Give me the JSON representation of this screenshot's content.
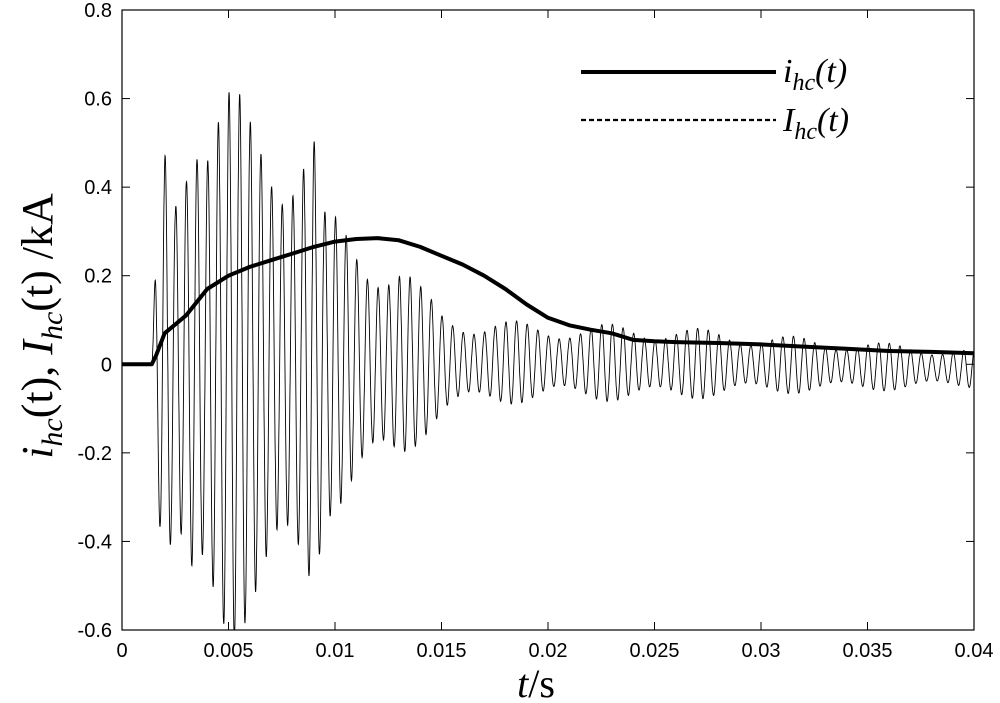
{
  "chart_data": {
    "type": "line",
    "xlabel": {
      "var": "t",
      "unit": "/s"
    },
    "ylabel": {
      "part1_base": "i",
      "part1_sub": "hc",
      "part1_rest": "(t), ",
      "part2_base": "I",
      "part2_sub": "hc",
      "part2_rest": "(t) /kA"
    },
    "xlim": [
      0,
      0.04
    ],
    "ylim": [
      -0.6,
      0.8
    ],
    "x_ticks": [
      0,
      0.005,
      0.01,
      0.015,
      0.02,
      0.025,
      0.03,
      0.035,
      0.04
    ],
    "x_tick_labels": [
      "0",
      "0.005",
      "0.01",
      "0.015",
      "0.02",
      "0.025",
      "0.03",
      "0.035",
      "0.04"
    ],
    "y_ticks": [
      -0.6,
      -0.4,
      -0.2,
      0,
      0.2,
      0.4,
      0.6,
      0.8
    ],
    "y_tick_labels": [
      "-0.6",
      "-0.4",
      "-0.2",
      "0",
      "0.2",
      "0.4",
      "0.6",
      "0.8"
    ],
    "grid": false,
    "legend_position": "top-right",
    "series": [
      {
        "name_base": "i",
        "name_sub": "hc",
        "name_rest": "(t)",
        "style": "solid-thick",
        "color": "#000000",
        "points": [
          [
            0,
            0
          ],
          [
            0.0014,
            0
          ],
          [
            0.0016,
            0.02
          ],
          [
            0.002,
            0.07
          ],
          [
            0.003,
            0.11
          ],
          [
            0.004,
            0.17
          ],
          [
            0.005,
            0.2
          ],
          [
            0.006,
            0.22
          ],
          [
            0.007,
            0.235
          ],
          [
            0.008,
            0.25
          ],
          [
            0.009,
            0.265
          ],
          [
            0.01,
            0.277
          ],
          [
            0.011,
            0.283
          ],
          [
            0.012,
            0.285
          ],
          [
            0.013,
            0.28
          ],
          [
            0.014,
            0.265
          ],
          [
            0.015,
            0.245
          ],
          [
            0.016,
            0.225
          ],
          [
            0.017,
            0.2
          ],
          [
            0.018,
            0.17
          ],
          [
            0.019,
            0.135
          ],
          [
            0.02,
            0.105
          ],
          [
            0.021,
            0.088
          ],
          [
            0.022,
            0.078
          ],
          [
            0.023,
            0.07
          ],
          [
            0.024,
            0.055
          ],
          [
            0.025,
            0.052
          ],
          [
            0.026,
            0.05
          ],
          [
            0.028,
            0.048
          ],
          [
            0.03,
            0.045
          ],
          [
            0.032,
            0.04
          ],
          [
            0.034,
            0.035
          ],
          [
            0.036,
            0.03
          ],
          [
            0.038,
            0.028
          ],
          [
            0.04,
            0.025
          ]
        ]
      },
      {
        "name_base": "I",
        "name_sub": "hc",
        "name_rest": "(t)",
        "style": "dashed",
        "color": "#000000",
        "envelope": [
          [
            0.0014,
            0
          ],
          [
            0.0016,
            0.22
          ],
          [
            0.002,
            0.45
          ],
          [
            0.0025,
            0.4
          ],
          [
            0.0034,
            0.64
          ],
          [
            0.0038,
            0.52
          ],
          [
            0.005,
            0.51
          ],
          [
            0.006,
            0.47
          ],
          [
            0.007,
            0.48
          ],
          [
            0.008,
            0.48
          ],
          [
            0.009,
            0.46
          ],
          [
            0.0095,
            0.28
          ],
          [
            0.011,
            0.25
          ],
          [
            0.012,
            0.23
          ],
          [
            0.013,
            0.2
          ],
          [
            0.014,
            0.14
          ],
          [
            0.015,
            0.1
          ],
          [
            0.017,
            0.08
          ],
          [
            0.02,
            0.07
          ],
          [
            0.025,
            0.07
          ],
          [
            0.03,
            0.055
          ],
          [
            0.035,
            0.045
          ],
          [
            0.04,
            0.035
          ]
        ],
        "frequency_hz": 2000,
        "offset": [
          [
            0.0014,
            0
          ],
          [
            0.01,
            0
          ],
          [
            0.02,
            0.005
          ],
          [
            0.03,
            0.0
          ],
          [
            0.04,
            -0.01
          ]
        ]
      }
    ]
  }
}
